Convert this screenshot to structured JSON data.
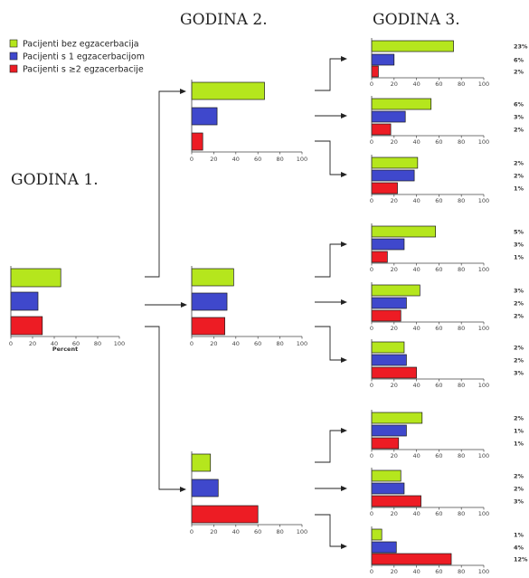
{
  "colors": {
    "green": "#b5e61d",
    "blue": "#3f48cc",
    "red": "#ed1c24"
  },
  "chart_data": {
    "type": "bar",
    "orientation": "horizontal",
    "headers": {
      "year1": "GODINA 1.",
      "year2": "GODINA 2.",
      "year3": "GODINA 3."
    },
    "legend": {
      "placement": "top-left",
      "entries": [
        "Pacijenti bez egzacerbacija",
        "Pacijenti s 1 egzacerbacijom",
        "Pacijenti s ≥2  egzacerbacije"
      ]
    },
    "xlim": [
      0,
      100
    ],
    "ticks": [
      "0",
      "20",
      "40",
      "60",
      "80",
      "100"
    ],
    "xlabel": "Percent",
    "year1": {
      "values": [
        46,
        25,
        29
      ]
    },
    "year2": [
      {
        "values": [
          66,
          23,
          10
        ]
      },
      {
        "values": [
          38,
          32,
          30
        ]
      },
      {
        "values": [
          17,
          24,
          60
        ]
      }
    ],
    "year3": [
      {
        "values": [
          73,
          20,
          6
        ],
        "labels": [
          "23%",
          "6%",
          "2%"
        ]
      },
      {
        "values": [
          53,
          30,
          17
        ],
        "labels": [
          "6%",
          "3%",
          "2%"
        ]
      },
      {
        "values": [
          41,
          38,
          23
        ],
        "labels": [
          "2%",
          "2%",
          "1%"
        ]
      },
      {
        "values": [
          57,
          29,
          14
        ],
        "labels": [
          "5%",
          "3%",
          "1%"
        ]
      },
      {
        "values": [
          43,
          31,
          26
        ],
        "labels": [
          "3%",
          "2%",
          "2%"
        ]
      },
      {
        "values": [
          29,
          31,
          40
        ],
        "labels": [
          "2%",
          "2%",
          "3%"
        ]
      },
      {
        "values": [
          45,
          31,
          24
        ],
        "labels": [
          "2%",
          "1%",
          "1%"
        ]
      },
      {
        "values": [
          26,
          29,
          44
        ],
        "labels": [
          "2%",
          "2%",
          "3%"
        ]
      },
      {
        "values": [
          9,
          22,
          71
        ],
        "labels": [
          "1%",
          "4%",
          "12%"
        ]
      }
    ]
  }
}
